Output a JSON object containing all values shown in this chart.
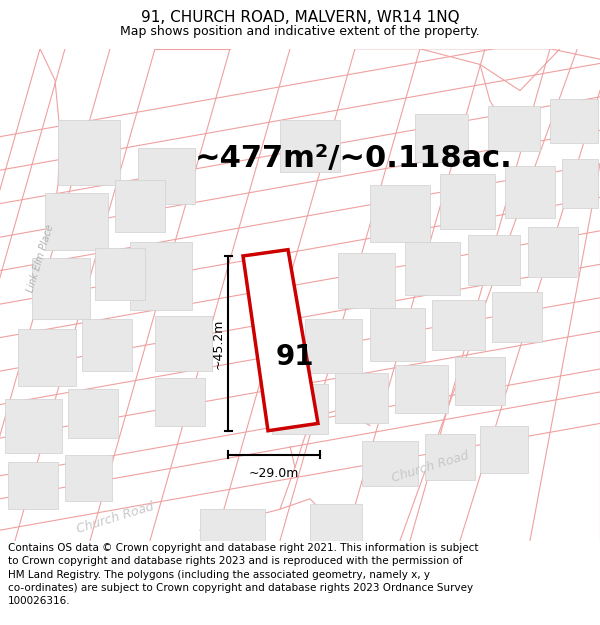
{
  "title": "91, CHURCH ROAD, MALVERN, WR14 1NQ",
  "subtitle": "Map shows position and indicative extent of the property.",
  "area_text": "~477m²/~0.118ac.",
  "width_label": "~29.0m",
  "height_label": "~45.2m",
  "property_number": "91",
  "map_bg": "#ffffff",
  "line_color": "#f0a0a0",
  "building_fill": "#e8e8e8",
  "building_stroke": "#d0d0d0",
  "highlight_fill": "#ffffff",
  "highlight_stroke": "#cc0000",
  "road_label_color": "#c8c8c8",
  "link_elm_color": "#b0b0b0",
  "footer_text": "Contains OS data © Crown copyright and database right 2021. This information is subject to Crown copyright and database rights 2023 and is reproduced with the permission of HM Land Registry. The polygons (including the associated geometry, namely x, y co-ordinates) are subject to Crown copyright and database rights 2023 Ordnance Survey 100026316.",
  "title_fontsize": 11,
  "subtitle_fontsize": 9,
  "area_fontsize": 22,
  "dim_label_fontsize": 9,
  "property_num_fontsize": 20,
  "footer_fontsize": 7.5
}
